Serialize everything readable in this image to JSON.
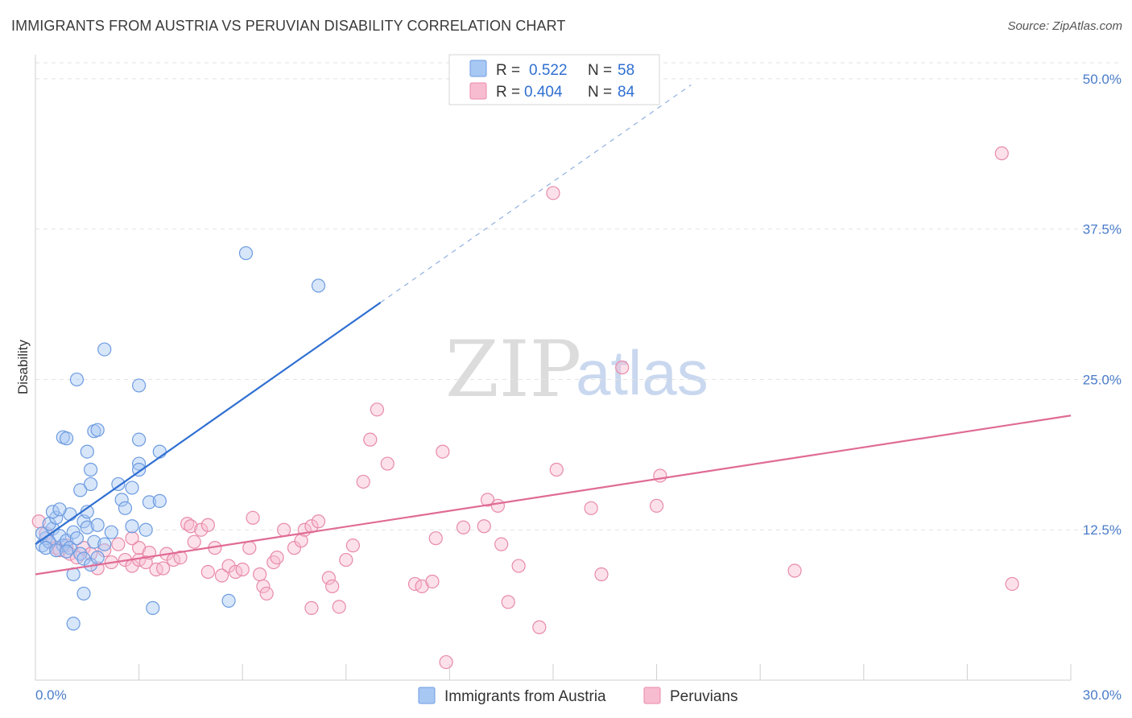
{
  "header": {
    "title": "IMMIGRANTS FROM AUSTRIA VS PERUVIAN DISABILITY CORRELATION CHART",
    "source": "Source: ZipAtlas.com"
  },
  "watermark": {
    "zip": "ZIP",
    "atlas": "atlas"
  },
  "legend": {
    "rows": [
      {
        "r_label": "R =",
        "r_value": "0.522",
        "n_label": "N =",
        "n_value": "58",
        "color": "#a8c8f4",
        "stroke": "#6c9be0"
      },
      {
        "r_label": "R =",
        "r_value": "0.404",
        "n_label": "N =",
        "n_value": "84",
        "color": "#f8bcd0",
        "stroke": "#e88aa8"
      }
    ]
  },
  "chart_data": {
    "type": "scatter",
    "title": "IMMIGRANTS FROM AUSTRIA VS PERUVIAN DISABILITY CORRELATION CHART",
    "xlabel": "",
    "ylabel": "Disability",
    "xlim": [
      0,
      30
    ],
    "ylim": [
      0,
      52
    ],
    "x_tick_labels": [
      "0.0%",
      "30.0%"
    ],
    "y_ticks": [
      12.5,
      25.0,
      37.5,
      50.0
    ],
    "y_tick_labels": [
      "12.5%",
      "25.0%",
      "37.5%",
      "50.0%"
    ],
    "grid": "horizontal dashed",
    "legend_position": "top-center",
    "series": [
      {
        "name": "Immigrants from Austria",
        "color": "#6c9be0",
        "fill": "#a8c8f4",
        "trend_color": "#2f6fd1",
        "trend": {
          "x0": 0.0,
          "y0": 11.3,
          "x1": 10.0,
          "y1": 31.4,
          "dash_to_x": 19.0,
          "dash_to_y": 49.5
        },
        "points": [
          [
            0.2,
            11.2
          ],
          [
            0.3,
            11.8
          ],
          [
            0.2,
            12.2
          ],
          [
            0.4,
            11.5
          ],
          [
            0.5,
            12.6
          ],
          [
            0.4,
            13.0
          ],
          [
            0.6,
            13.5
          ],
          [
            0.5,
            14.0
          ],
          [
            0.7,
            12.0
          ],
          [
            0.8,
            11.2
          ],
          [
            0.3,
            11.0
          ],
          [
            0.6,
            10.8
          ],
          [
            0.9,
            11.6
          ],
          [
            1.0,
            11.0
          ],
          [
            1.1,
            12.3
          ],
          [
            1.2,
            11.8
          ],
          [
            1.3,
            10.5
          ],
          [
            0.9,
            10.7
          ],
          [
            1.0,
            13.8
          ],
          [
            0.7,
            14.2
          ],
          [
            1.4,
            13.2
          ],
          [
            1.5,
            14.0
          ],
          [
            1.3,
            15.8
          ],
          [
            1.6,
            16.3
          ],
          [
            1.5,
            12.7
          ],
          [
            1.7,
            11.5
          ],
          [
            1.8,
            12.9
          ],
          [
            2.0,
            11.3
          ],
          [
            1.4,
            10.1
          ],
          [
            1.6,
            9.6
          ],
          [
            1.8,
            10.2
          ],
          [
            2.2,
            12.3
          ],
          [
            2.5,
            15.0
          ],
          [
            2.6,
            14.3
          ],
          [
            2.8,
            16.0
          ],
          [
            2.8,
            12.8
          ],
          [
            3.3,
            14.8
          ],
          [
            3.6,
            14.9
          ],
          [
            2.4,
            16.3
          ],
          [
            1.6,
            17.5
          ],
          [
            3.0,
            18.0
          ],
          [
            3.0,
            17.5
          ],
          [
            1.5,
            19.0
          ],
          [
            0.8,
            20.2
          ],
          [
            0.9,
            20.1
          ],
          [
            1.7,
            20.7
          ],
          [
            1.8,
            20.8
          ],
          [
            3.0,
            20.0
          ],
          [
            3.6,
            19.0
          ],
          [
            3.0,
            24.5
          ],
          [
            2.0,
            27.5
          ],
          [
            1.2,
            25.0
          ],
          [
            6.1,
            35.5
          ],
          [
            8.2,
            32.8
          ],
          [
            1.1,
            8.8
          ],
          [
            1.4,
            7.2
          ],
          [
            1.1,
            4.7
          ],
          [
            3.4,
            6.0
          ],
          [
            5.6,
            6.6
          ],
          [
            3.2,
            12.5
          ]
        ]
      },
      {
        "name": "Peruvians",
        "color": "#e88aa8",
        "fill": "#f8bcd0",
        "trend_color": "#e06b95",
        "trend": {
          "x0": 0.0,
          "y0": 8.8,
          "x1": 30.0,
          "y1": 22.0
        },
        "points": [
          [
            0.1,
            13.2
          ],
          [
            0.3,
            12.2
          ],
          [
            0.4,
            11.5
          ],
          [
            0.6,
            11.0
          ],
          [
            0.7,
            10.8
          ],
          [
            0.9,
            11.2
          ],
          [
            1.0,
            10.5
          ],
          [
            1.2,
            10.2
          ],
          [
            1.4,
            11.0
          ],
          [
            1.6,
            10.5
          ],
          [
            1.8,
            9.3
          ],
          [
            2.0,
            10.8
          ],
          [
            2.2,
            9.8
          ],
          [
            2.4,
            11.3
          ],
          [
            2.6,
            10.0
          ],
          [
            2.8,
            9.5
          ],
          [
            3.0,
            10.0
          ],
          [
            3.0,
            11.0
          ],
          [
            3.2,
            9.8
          ],
          [
            3.3,
            10.6
          ],
          [
            3.5,
            9.2
          ],
          [
            3.7,
            9.3
          ],
          [
            3.8,
            10.5
          ],
          [
            4.0,
            10.0
          ],
          [
            4.2,
            10.2
          ],
          [
            4.4,
            13.0
          ],
          [
            4.5,
            12.8
          ],
          [
            4.6,
            11.5
          ],
          [
            4.8,
            12.5
          ],
          [
            5.0,
            9.0
          ],
          [
            5.2,
            11.0
          ],
          [
            5.4,
            8.7
          ],
          [
            5.6,
            9.5
          ],
          [
            5.8,
            9.0
          ],
          [
            6.0,
            9.2
          ],
          [
            6.2,
            11.0
          ],
          [
            6.3,
            13.5
          ],
          [
            6.5,
            8.8
          ],
          [
            6.6,
            7.8
          ],
          [
            6.7,
            7.2
          ],
          [
            6.9,
            9.8
          ],
          [
            7.0,
            10.2
          ],
          [
            7.2,
            12.5
          ],
          [
            7.5,
            11.0
          ],
          [
            7.7,
            11.6
          ],
          [
            7.8,
            12.5
          ],
          [
            8.0,
            12.8
          ],
          [
            8.2,
            13.2
          ],
          [
            8.5,
            8.5
          ],
          [
            8.6,
            7.8
          ],
          [
            8.8,
            6.1
          ],
          [
            9.0,
            10.0
          ],
          [
            9.2,
            11.2
          ],
          [
            9.5,
            16.5
          ],
          [
            9.7,
            20.0
          ],
          [
            9.9,
            22.5
          ],
          [
            10.2,
            18.0
          ],
          [
            11.0,
            8.0
          ],
          [
            11.2,
            7.8
          ],
          [
            11.5,
            8.2
          ],
          [
            11.6,
            11.8
          ],
          [
            11.8,
            19.0
          ],
          [
            11.9,
            1.5
          ],
          [
            12.4,
            12.7
          ],
          [
            13.0,
            12.8
          ],
          [
            13.1,
            15.0
          ],
          [
            13.4,
            14.5
          ],
          [
            13.5,
            11.3
          ],
          [
            13.7,
            6.5
          ],
          [
            14.0,
            9.5
          ],
          [
            14.6,
            4.4
          ],
          [
            15.0,
            40.5
          ],
          [
            15.1,
            17.5
          ],
          [
            16.1,
            14.3
          ],
          [
            16.4,
            8.8
          ],
          [
            17.0,
            26.0
          ],
          [
            18.1,
            17.0
          ],
          [
            18.0,
            14.5
          ],
          [
            22.0,
            9.1
          ],
          [
            28.3,
            8.0
          ],
          [
            28.0,
            43.8
          ],
          [
            2.8,
            11.8
          ],
          [
            5.0,
            12.9
          ],
          [
            8.0,
            6.0
          ]
        ]
      }
    ]
  },
  "bottom_legend": {
    "items": [
      {
        "label": "Immigrants from Austria"
      },
      {
        "label": "Peruvians"
      }
    ]
  }
}
